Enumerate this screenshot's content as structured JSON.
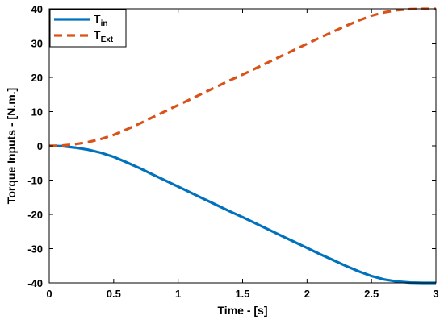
{
  "chart_data": {
    "type": "line",
    "title": "",
    "xlabel": "Time - [s]",
    "ylabel": "Torque Inputs - [N.m.]",
    "xlim": [
      0,
      3
    ],
    "ylim": [
      -40,
      40
    ],
    "xticks": [
      "0",
      "0.5",
      "1",
      "1.5",
      "2",
      "2.5",
      "3"
    ],
    "yticks": [
      "40",
      "30",
      "20",
      "10",
      "0",
      "-10",
      "-20",
      "-30",
      "-40"
    ],
    "grid": false,
    "legend_position": "top-left",
    "x": [
      0,
      0.1,
      0.2,
      0.3,
      0.4,
      0.5,
      0.6,
      0.7,
      0.8,
      0.9,
      1.0,
      1.1,
      1.2,
      1.3,
      1.4,
      1.5,
      1.6,
      1.7,
      1.8,
      1.9,
      2.0,
      2.1,
      2.2,
      2.3,
      2.4,
      2.5,
      2.6,
      2.7,
      2.8,
      2.9,
      3.0
    ],
    "series": [
      {
        "name": "T",
        "subscript": "in",
        "color": "#0072BD",
        "dash": "solid",
        "values": [
          0,
          -0.1,
          -0.5,
          -1.1,
          -2.0,
          -3.2,
          -4.8,
          -6.5,
          -8.3,
          -10.1,
          -11.9,
          -13.7,
          -15.5,
          -17.3,
          -19.1,
          -20.8,
          -22.6,
          -24.4,
          -26.2,
          -28.0,
          -29.8,
          -31.6,
          -33.3,
          -35.0,
          -36.6,
          -38.0,
          -39.0,
          -39.6,
          -39.9,
          -40.0,
          -40.0
        ]
      },
      {
        "name": "T",
        "subscript": "Ext",
        "color": "#D95319",
        "dash": "dashed",
        "values": [
          0,
          0.1,
          0.5,
          1.1,
          2.0,
          3.2,
          4.8,
          6.5,
          8.3,
          10.1,
          11.9,
          13.7,
          15.5,
          17.3,
          19.1,
          20.8,
          22.6,
          24.4,
          26.2,
          28.0,
          29.8,
          31.6,
          33.3,
          35.0,
          36.6,
          38.0,
          39.0,
          39.6,
          39.9,
          40.0,
          40.0
        ]
      }
    ]
  }
}
